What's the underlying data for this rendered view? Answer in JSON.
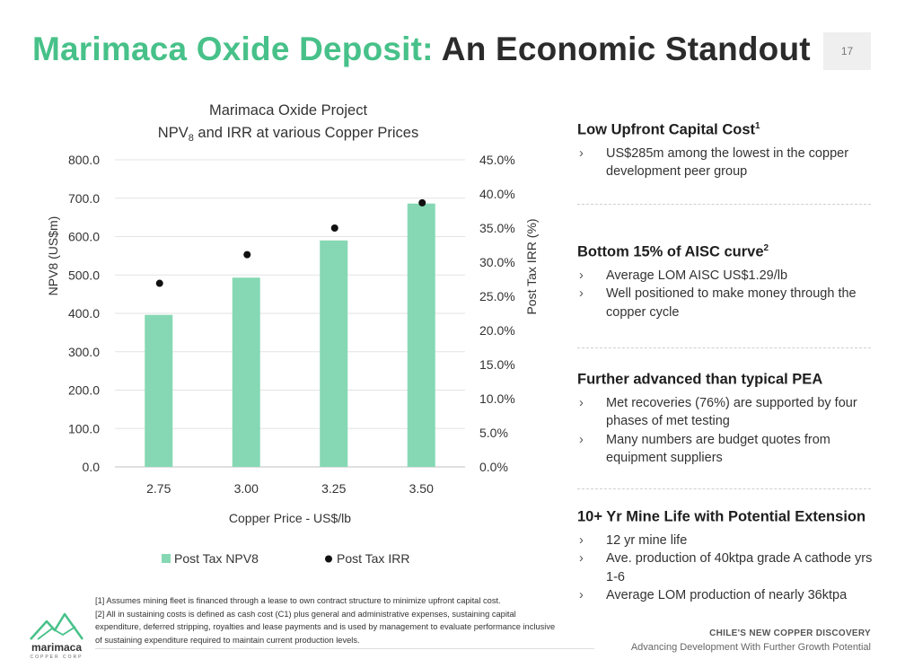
{
  "slide": {
    "title_accent": "Marimaca Oxide Deposit:",
    "title_rest": "An Economic Standout",
    "page_number": "17"
  },
  "chart_data": {
    "type": "bar",
    "title_line1": "Marimaca Oxide Project",
    "title_npv": "NPV",
    "title_sub": "8",
    "title_rest": " and IRR at various Copper Prices",
    "xlabel": "Copper Price - US$/lb",
    "ylabel": "NPV8 (US$m)",
    "y2label": "Post Tax IRR (%)",
    "categories": [
      "2.75",
      "3.00",
      "3.25",
      "3.50"
    ],
    "ylim": [
      0,
      800
    ],
    "y2lim": [
      0,
      45
    ],
    "yticks": [
      "0.0",
      "100.0",
      "200.0",
      "300.0",
      "400.0",
      "500.0",
      "600.0",
      "700.0",
      "800.0"
    ],
    "y2ticks": [
      "0.0%",
      "5.0%",
      "10.0%",
      "15.0%",
      "20.0%",
      "25.0%",
      "30.0%",
      "35.0%",
      "40.0%",
      "45.0%"
    ],
    "grid": true,
    "legend_position": "bottom",
    "series": [
      {
        "name": "Post Tax NPV8",
        "kind": "bar",
        "axis": "left",
        "color": "#85d8b3",
        "values": [
          396,
          493,
          590,
          686
        ]
      },
      {
        "name": "Post Tax IRR",
        "kind": "scatter",
        "axis": "right",
        "color": "#111111",
        "values": [
          26.9,
          31.1,
          35.0,
          38.7
        ]
      }
    ]
  },
  "sections": [
    {
      "heading": "Low Upfront Capital Cost",
      "sup": "1",
      "bullets": [
        "US$285m among the lowest in the copper development peer group"
      ]
    },
    {
      "heading": "Bottom 15% of AISC curve",
      "sup": "2",
      "bullets": [
        "Average LOM AISC US$1.29/lb",
        "Well positioned to make money through the copper cycle"
      ]
    },
    {
      "heading": "Further advanced than typical PEA",
      "sup": "",
      "bullets": [
        "Met recoveries (76%) are supported by four phases of met testing",
        "Many numbers are budget quotes from equipment suppliers"
      ]
    },
    {
      "heading": "10+ Yr Mine Life with Potential Extension",
      "sup": "",
      "bullets": [
        "12 yr mine life",
        "Ave. production of 40ktpa grade A cathode yrs 1-6",
        "Average LOM production of nearly 36ktpa"
      ]
    }
  ],
  "footnotes": {
    "note1": "[1] Assumes mining fleet is financed through a lease to own contract structure to minimize upfront capital cost.",
    "note2": "[2] All in sustaining costs is defined as cash cost (C1) plus general and administrative expenses, sustaining capital expenditure, deferred stripping, royalties and lease payments and is used by management to evaluate performance inclusive of sustaining expenditure required to maintain current production levels."
  },
  "footer": {
    "tagline": "CHILE'S NEW COPPER DISCOVERY",
    "subtagline": "Advancing Development With Further Growth Potential",
    "logo_text": "marimaca",
    "logo_sub": "COPPER CORP"
  },
  "colors": {
    "accent": "#47c189",
    "bar": "#85d8b3"
  }
}
